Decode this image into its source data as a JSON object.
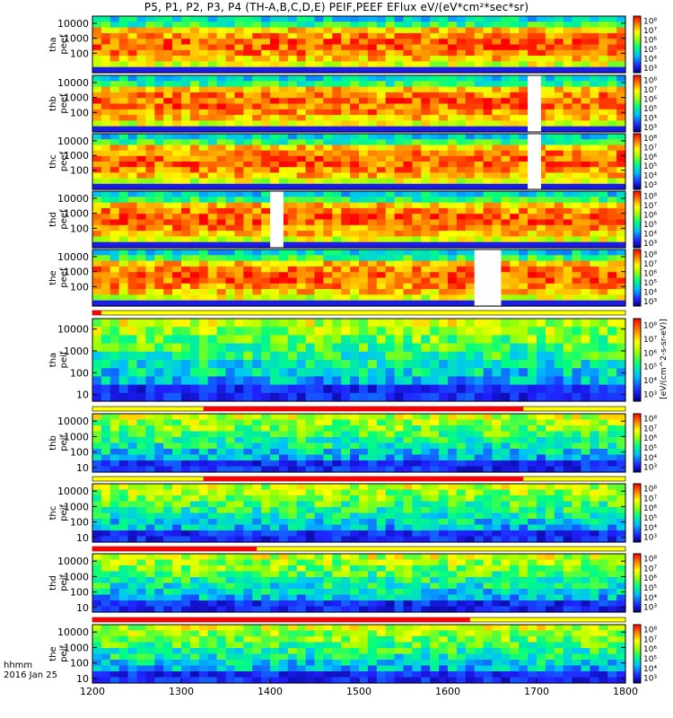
{
  "title": "P5, P1, P2, P3, P4 (TH-A,B,C,D,E) PEIF,PEEF EFlux eV/(eV*cm²*sec*sr)",
  "time_caption": {
    "label": "hhmm",
    "date": "2016 Jan 25"
  },
  "colorbar_label": "[eV/(cm^2-s-sr-eV)]",
  "chart_data": {
    "type": "heatmap",
    "x": {
      "ticks": [
        1200,
        1300,
        1400,
        1500,
        1600,
        1700,
        1800
      ],
      "range": [
        1200,
        1800
      ],
      "label": "hhmm"
    },
    "panels": [
      {
        "id": "tha_peef",
        "label": [
          "tha",
          "peef"
        ],
        "yticks": [
          100,
          1000,
          10000
        ],
        "colorbar_ticks": [
          "10³",
          "10⁴",
          "10⁵",
          "10⁶",
          "10⁷",
          "10⁸"
        ],
        "gaps": []
      },
      {
        "id": "thb_peef",
        "label": [
          "thb",
          "peef"
        ],
        "yticks": [
          100,
          1000,
          10000
        ],
        "colorbar_ticks": [
          "10³",
          "10⁴",
          "10⁵",
          "10⁶",
          "10⁷",
          "10⁸"
        ],
        "gaps": [
          [
            1690,
            1705
          ]
        ]
      },
      {
        "id": "thc_peef",
        "label": [
          "thc",
          "peef"
        ],
        "yticks": [
          100,
          1000,
          10000
        ],
        "colorbar_ticks": [
          "10³",
          "10⁴",
          "10⁵",
          "10⁶",
          "10⁷",
          "10⁸"
        ],
        "gaps": [
          [
            1690,
            1705
          ]
        ]
      },
      {
        "id": "thd_peef",
        "label": [
          "thd",
          "peef"
        ],
        "yticks": [
          100,
          1000,
          10000
        ],
        "colorbar_ticks": [
          "10³",
          "10⁴",
          "10⁵",
          "10⁶",
          "10⁷",
          "10⁸"
        ],
        "gaps": [
          [
            1400,
            1415
          ]
        ]
      },
      {
        "id": "the_peef",
        "label": [
          "the",
          "peef"
        ],
        "yticks": [
          100,
          1000,
          10000
        ],
        "colorbar_ticks": [
          "10³",
          "10⁴",
          "10⁵",
          "10⁶",
          "10⁷",
          "10⁸"
        ],
        "gaps": [
          [
            1630,
            1660
          ]
        ]
      },
      {
        "id": "tha_peif",
        "label": [
          "tha",
          "peif"
        ],
        "yticks": [
          10,
          100,
          1000,
          10000
        ],
        "colorbar_ticks": [
          "10³",
          "10⁴",
          "10⁵",
          "10⁶",
          "10⁷",
          "10⁸"
        ],
        "gaps": []
      },
      {
        "id": "thb_peif",
        "label": [
          "thb",
          "peif"
        ],
        "yticks": [
          10,
          100,
          1000,
          10000
        ],
        "colorbar_ticks": [
          "10³",
          "10⁴",
          "10⁵",
          "10⁶",
          "10⁷",
          "10⁸"
        ],
        "gaps": []
      },
      {
        "id": "thc_peif",
        "label": [
          "thc",
          "peif"
        ],
        "yticks": [
          10,
          100,
          1000,
          10000
        ],
        "colorbar_ticks": [
          "10³",
          "10⁴",
          "10⁵",
          "10⁶",
          "10⁷",
          "10⁸"
        ],
        "gaps": []
      },
      {
        "id": "thd_peif",
        "label": [
          "thd",
          "peif"
        ],
        "yticks": [
          10,
          100,
          1000,
          10000
        ],
        "colorbar_ticks": [
          "10³",
          "10⁴",
          "10⁵",
          "10⁶",
          "10⁷",
          "10⁸"
        ],
        "gaps": []
      },
      {
        "id": "the_peif",
        "label": [
          "the",
          "peif"
        ],
        "yticks": [
          10,
          100,
          1000,
          10000
        ],
        "colorbar_ticks": [
          "10³",
          "10⁴",
          "10⁵",
          "10⁶",
          "10⁷",
          "10⁸"
        ],
        "gaps": []
      }
    ],
    "mode_bars": [
      {
        "after_panel": "the_peef",
        "red": [
          [
            1200,
            1210
          ]
        ]
      },
      {
        "after_panel": "tha_peif",
        "red": [
          [
            1325,
            1685
          ]
        ]
      },
      {
        "after_panel": "thb_peif",
        "red": [
          [
            1325,
            1685
          ]
        ]
      },
      {
        "after_panel": "thc_peif",
        "red": [
          [
            1200,
            1385
          ]
        ]
      },
      {
        "after_panel": "thd_peif",
        "red": [
          [
            1200,
            1625
          ]
        ]
      }
    ]
  }
}
